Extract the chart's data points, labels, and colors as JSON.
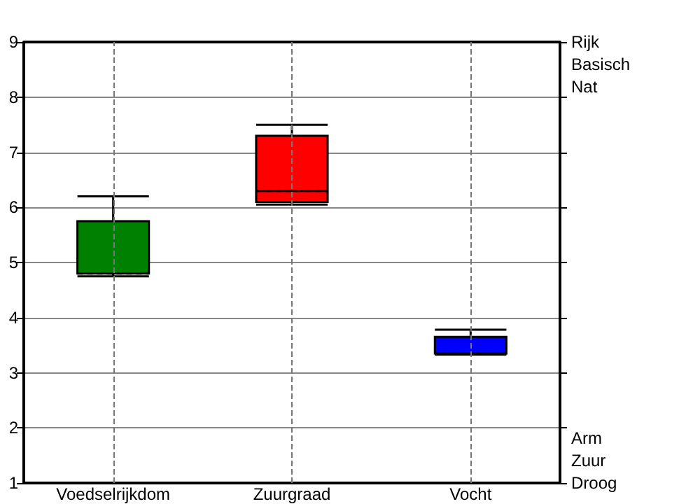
{
  "chart_data": {
    "type": "box",
    "categories": [
      "Voedselrijkdom",
      "Zuurgraad",
      "Vocht"
    ],
    "boxes": [
      {
        "low": 4.75,
        "q1": 4.8,
        "median": 4.8,
        "q3": 5.75,
        "high": 6.2
      },
      {
        "low": 6.05,
        "q1": 6.1,
        "median": 6.3,
        "q3": 7.3,
        "high": 7.5
      },
      {
        "low": 3.33,
        "q1": 3.35,
        "median": 3.35,
        "q3": 3.65,
        "high": 3.78
      }
    ],
    "colors": [
      "#008000",
      "#ff0000",
      "#0000ff"
    ],
    "ylim": [
      1,
      9
    ],
    "yticks": [
      1,
      2,
      3,
      4,
      5,
      6,
      7,
      8,
      9
    ],
    "grid": true,
    "annotations": [
      "Rijk",
      "Basisch",
      "Nat",
      "Arm",
      "Zuur",
      "Droog"
    ]
  }
}
